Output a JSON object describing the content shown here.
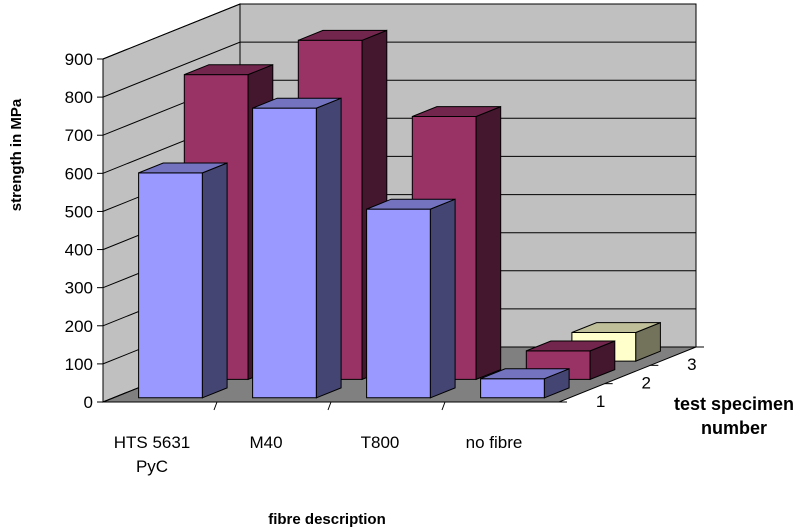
{
  "chart_data": {
    "type": "bar",
    "title": "",
    "xlabel": "fibre description",
    "ylabel": "strength in MPa",
    "zlabel": [
      "test specimen",
      "number"
    ],
    "categories": [
      [
        "HTS 5631",
        "PyC"
      ],
      [
        "M40"
      ],
      [
        "T800"
      ],
      [
        "no fibre"
      ]
    ],
    "yticks": [
      0,
      100,
      200,
      300,
      400,
      500,
      600,
      700,
      800,
      900
    ],
    "ylim": [
      0,
      900
    ],
    "grid": true,
    "legend": "none",
    "series": [
      {
        "name": "1",
        "color": "#9999FF",
        "values": [
          590,
          760,
          495,
          50
        ]
      },
      {
        "name": "2",
        "color": "#993366",
        "values": [
          800,
          890,
          690,
          75
        ]
      },
      {
        "name": "3",
        "color": "#FFFFCC",
        "values": [
          0,
          0,
          0,
          75
        ]
      }
    ]
  }
}
